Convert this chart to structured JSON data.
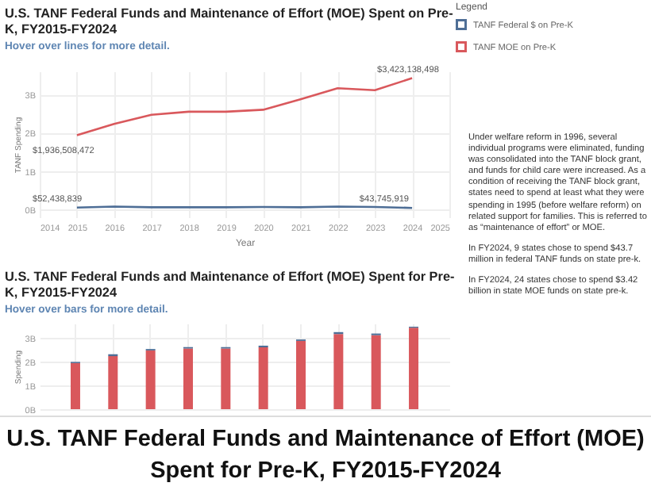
{
  "chart_data": [
    {
      "type": "line",
      "title": "U.S. TANF Federal Funds and Maintenance of Effort (MOE) Spent on Pre-K, FY2015-FY2024",
      "subtitle": "Hover over lines for more detail.",
      "xlabel": "Year",
      "ylabel": "TANF Spending",
      "legend_title": "Legend",
      "legend": "top right",
      "grid": true,
      "x": [
        2015,
        2016,
        2017,
        2018,
        2019,
        2020,
        2021,
        2022,
        2023,
        2024
      ],
      "xlim": [
        2014,
        2025
      ],
      "xticks": [
        2014,
        2015,
        2016,
        2017,
        2018,
        2019,
        2020,
        2021,
        2022,
        2023,
        2024,
        2025
      ],
      "ylim": [
        -200000000,
        3600000000
      ],
      "yticks": [
        {
          "value": 0,
          "label": "0B"
        },
        {
          "value": 1000000000,
          "label": "1B"
        },
        {
          "value": 2000000000,
          "label": "2B"
        },
        {
          "value": 3000000000,
          "label": "3B"
        }
      ],
      "series": [
        {
          "name": "TANF Federal $ on Pre-K",
          "color": "#4e6e96",
          "values": [
            52438839,
            80000000,
            60000000,
            60000000,
            60000000,
            70000000,
            60000000,
            80000000,
            70000000,
            43745919
          ],
          "value_labels": [
            "$52,438,839",
            null,
            null,
            null,
            null,
            null,
            null,
            null,
            null,
            "$43,745,919"
          ]
        },
        {
          "name": "TANF MOE on Pre-K",
          "color": "#d9585c",
          "values": [
            1936508472,
            2230000000,
            2470000000,
            2550000000,
            2550000000,
            2600000000,
            2870000000,
            3160000000,
            3110000000,
            3423138498
          ],
          "value_labels": [
            "$1,936,508,472",
            null,
            null,
            null,
            null,
            null,
            null,
            null,
            null,
            "$3,423,138,498"
          ]
        }
      ]
    },
    {
      "type": "other",
      "annotations": [
        "Under welfare reform in 1996, several individual programs were eliminated, funding was consolidated into the TANF block grant, and funds for child care were increased. As a condition of receiving the TANF block grant, states need to spend at least what they were spending in 1995 (before welfare reform) on related support for families. This is referred to as “maintenance of effort” or MOE.",
        "In FY2024, 9 states chose to spend $43.7 million in federal TANF funds on state pre-k.",
        "In FY2024, 24 states chose to spend $3.42 billion in state MOE funds on state pre-k."
      ]
    },
    {
      "type": "bar",
      "stacked": true,
      "title": "U.S. TANF Federal Funds and Maintenance of Effort (MOE) Spent for Pre-K, FY2015-FY2024",
      "subtitle": "Hover over bars for more detail.",
      "ylabel": "Spending",
      "grid": true,
      "tick_labels": "y",
      "categories": [
        null,
        null,
        null,
        null,
        null,
        null,
        null,
        null,
        null,
        null
      ],
      "ylim": [
        0,
        3600000000
      ],
      "yticks": [
        {
          "value": 0,
          "label": "0B"
        },
        {
          "value": 1000000000,
          "label": "1B"
        },
        {
          "value": 2000000000,
          "label": "2B"
        },
        {
          "value": 3000000000,
          "label": "3B"
        }
      ],
      "annotations": [
        "U.S. TANF Federal Funds and Maintenance of Effort (MOE) Spent for Pre-K, FY2015-FY2024"
      ],
      "series": [
        {
          "color": "#d9585c",
          "values": [
            1936508472,
            2230000000,
            2470000000,
            2550000000,
            2550000000,
            2600000000,
            2870000000,
            3160000000,
            3110000000,
            3423138498
          ]
        },
        {
          "color": "#4e6e96",
          "values": [
            52438839,
            80000000,
            60000000,
            60000000,
            60000000,
            70000000,
            60000000,
            80000000,
            70000000,
            43745919
          ]
        }
      ]
    }
  ]
}
